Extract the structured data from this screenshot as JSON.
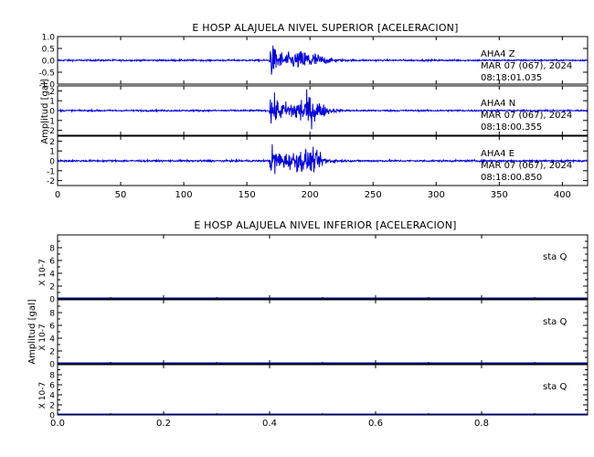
{
  "chart_data": [
    {
      "type": "line",
      "title": "E HOSP ALAJUELA NIVEL SUPERIOR [ACELERACION]",
      "ylabel": "Amplitud  [gal]",
      "xlim": [
        0,
        420
      ],
      "x_ticks": [
        0,
        50,
        100,
        150,
        200,
        250,
        300,
        350,
        400
      ],
      "x_tick_labels": [
        "0",
        "50",
        "100",
        "150",
        "200",
        "250",
        "300",
        "350",
        "400"
      ],
      "event_onset": 168,
      "peak_times": [
        170,
        198
      ],
      "trace_color": "#0000dd",
      "grid": false,
      "panels": [
        {
          "station": "AHA4",
          "component": "Z",
          "date": "MAR 07 (067), 2024",
          "time": "08:18:01.035",
          "ylim": [
            -1.0,
            1.0
          ],
          "y_ticks": [
            1.0,
            0.5,
            0.0,
            -0.5,
            -1.0
          ],
          "y_tick_labels": [
            "1.0",
            "0.5",
            "0.0",
            "-0.5",
            "-1.0"
          ],
          "noise_amp": 0.05,
          "peak_amp": 0.95,
          "secondary_amp": 0.5
        },
        {
          "station": "AHA4",
          "component": "N",
          "date": "MAR 07 (067), 2024",
          "time": "08:18:00.355",
          "ylim": [
            -2.5,
            2.5
          ],
          "y_ticks": [
            2,
            1,
            0,
            -1,
            -2
          ],
          "y_tick_labels": [
            "2",
            "1",
            "0",
            "-1",
            "-2"
          ],
          "noise_amp": 0.12,
          "peak_amp": 2.3,
          "secondary_amp": 2.0
        },
        {
          "station": "AHA4",
          "component": "E",
          "date": "MAR 07 (067), 2024",
          "time": "08:18:00.850",
          "ylim": [
            -2.5,
            2.5
          ],
          "y_ticks": [
            2,
            1,
            0,
            -1,
            -2
          ],
          "y_tick_labels": [
            "2",
            "1",
            "0",
            "-1",
            "-2"
          ],
          "noise_amp": 0.14,
          "peak_amp": 2.4,
          "secondary_amp": 1.5
        }
      ]
    },
    {
      "type": "line",
      "title": "E HOSP ALAJUELA NIVEL INFERIOR [ACELERACION]",
      "ylabel": "Amplitud  [gal]",
      "scale_label": "X 10-7",
      "xlim": [
        0,
        1.0
      ],
      "x_ticks": [
        0.0,
        0.2,
        0.4,
        0.6,
        0.8
      ],
      "x_tick_labels": [
        "0.0",
        "0.2",
        "0.4",
        "0.6",
        "0.8"
      ],
      "trace_color": "#0000dd",
      "grid": false,
      "panels": [
        {
          "station": "sta",
          "component": "Q",
          "ylim": [
            0,
            10
          ],
          "y_ticks": [
            8,
            6,
            4,
            2,
            0
          ],
          "y_tick_labels": [
            "8",
            "6",
            "4",
            "2",
            "0"
          ],
          "values": [
            0,
            0
          ]
        },
        {
          "station": "sta",
          "component": "Q",
          "ylim": [
            0,
            10
          ],
          "y_ticks": [
            8,
            6,
            4,
            2,
            0
          ],
          "y_tick_labels": [
            "8",
            "6",
            "4",
            "2",
            "0"
          ],
          "values": [
            0,
            0
          ]
        },
        {
          "station": "sta",
          "component": "Q",
          "ylim": [
            0,
            10
          ],
          "y_ticks": [
            8,
            6,
            4,
            2,
            0
          ],
          "y_tick_labels": [
            "8",
            "6",
            "4",
            "2",
            "0"
          ],
          "values": [
            0,
            0
          ]
        }
      ]
    }
  ]
}
